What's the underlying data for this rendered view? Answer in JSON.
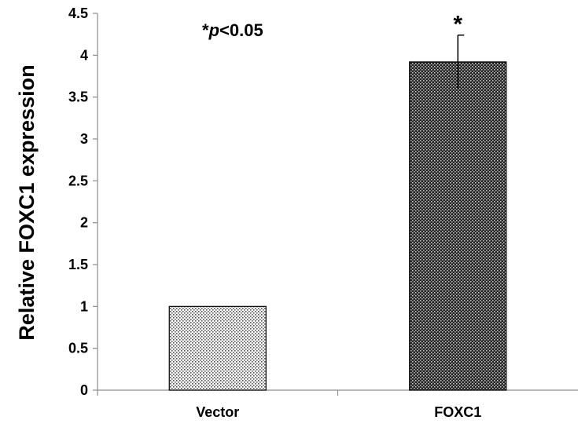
{
  "chart_data": {
    "type": "bar",
    "categories": [
      "Vector",
      "FOXC1"
    ],
    "values": [
      1.0,
      3.92
    ],
    "error_bars": [
      0.0,
      0.32
    ],
    "ylabel": "Relative FOXC1 expression",
    "xlabel": "",
    "ylim": [
      0,
      4.5
    ],
    "yticks": [
      "0",
      "0.5",
      "1",
      "1.5",
      "2",
      "2.5",
      "3",
      "3.5",
      "4",
      "4.5"
    ],
    "annotation": {
      "prefix": "*",
      "italic": "p",
      "suffix": "<0.05"
    },
    "significance_markers": [
      "",
      "*"
    ],
    "grid": false,
    "bar_patterns": [
      "light-dotted",
      "dark-dotted"
    ]
  }
}
